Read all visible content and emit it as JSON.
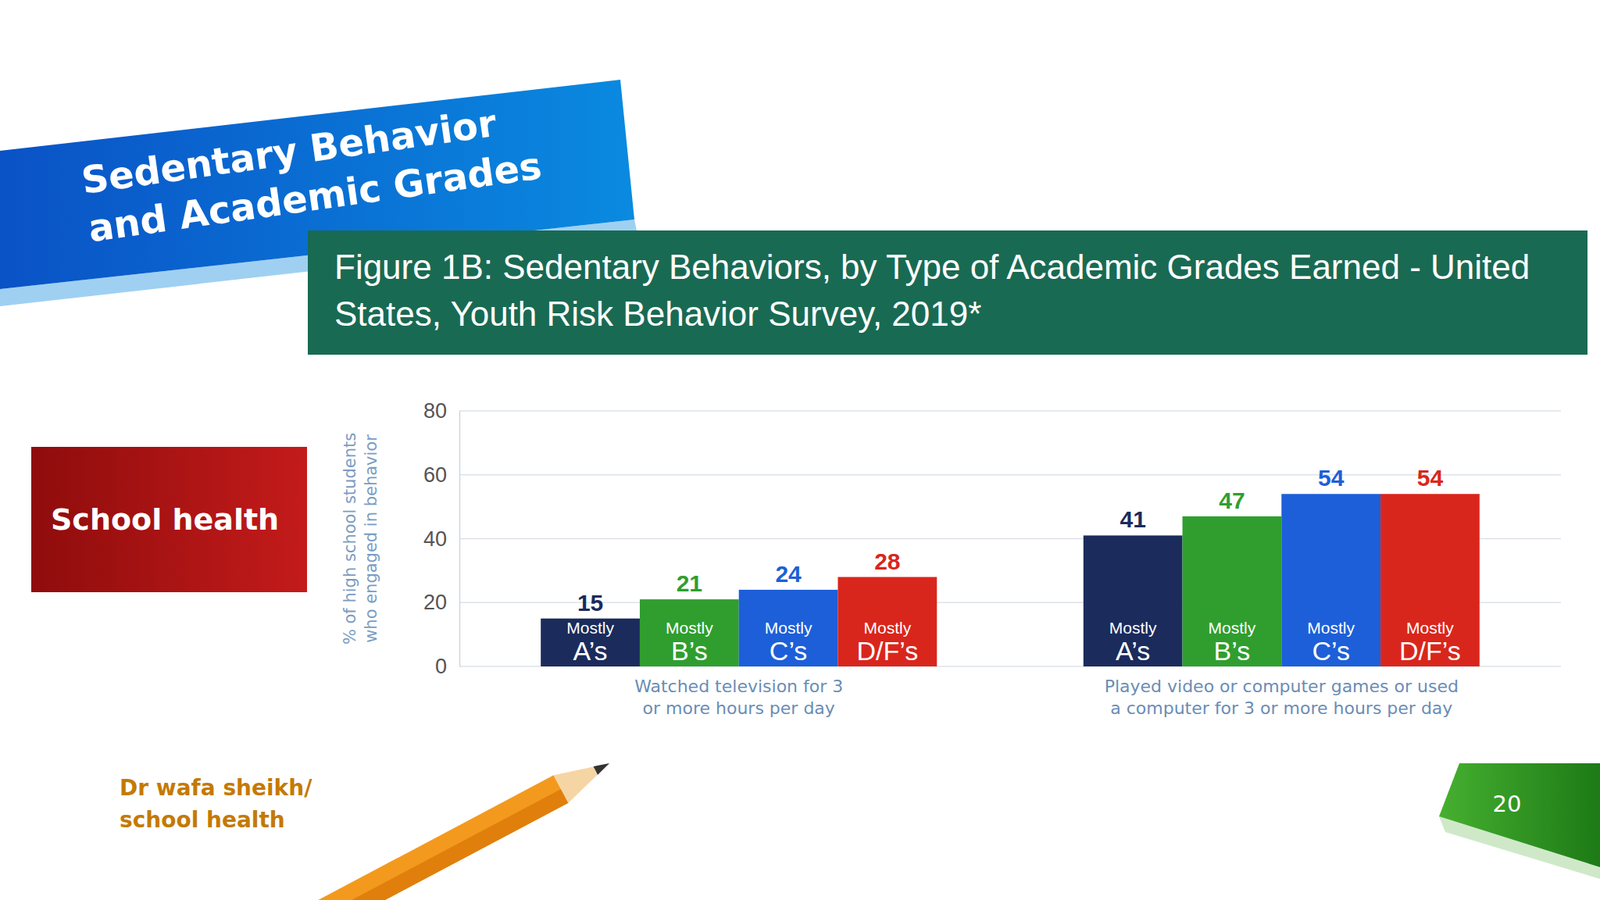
{
  "slide": {
    "banner_title": "Sedentary Behavior and Academic Grades",
    "side_label": "School health",
    "footer": "Dr wafa sheikh/ school health",
    "page_number": "20"
  },
  "chart_data": {
    "type": "bar",
    "title": "Figure 1B: Sedentary Behaviors, by Type of Academic Grades Earned - United States, Youth Risk Behavior Survey, 2019*",
    "y_label": "% of high school students who engaged in behavior",
    "categories": [
      "Watched television for 3 or more hours per day",
      "Played video or computer games or used a computer for 3 or more hours per day"
    ],
    "series": [
      {
        "name": "Mostly A’s",
        "color": "#1b2b5c",
        "values": [
          15,
          41
        ]
      },
      {
        "name": "Mostly B’s",
        "color": "#2f9e2f",
        "values": [
          21,
          47
        ]
      },
      {
        "name": "Mostly C’s",
        "color": "#1d5fd8",
        "values": [
          24,
          54
        ]
      },
      {
        "name": "Mostly D/F’s",
        "color": "#d9261c",
        "values": [
          28,
          54
        ]
      }
    ],
    "ylim": [
      0,
      80
    ],
    "yticks": [
      0,
      20,
      40,
      60,
      80
    ],
    "grid": true,
    "data_labels": true
  }
}
